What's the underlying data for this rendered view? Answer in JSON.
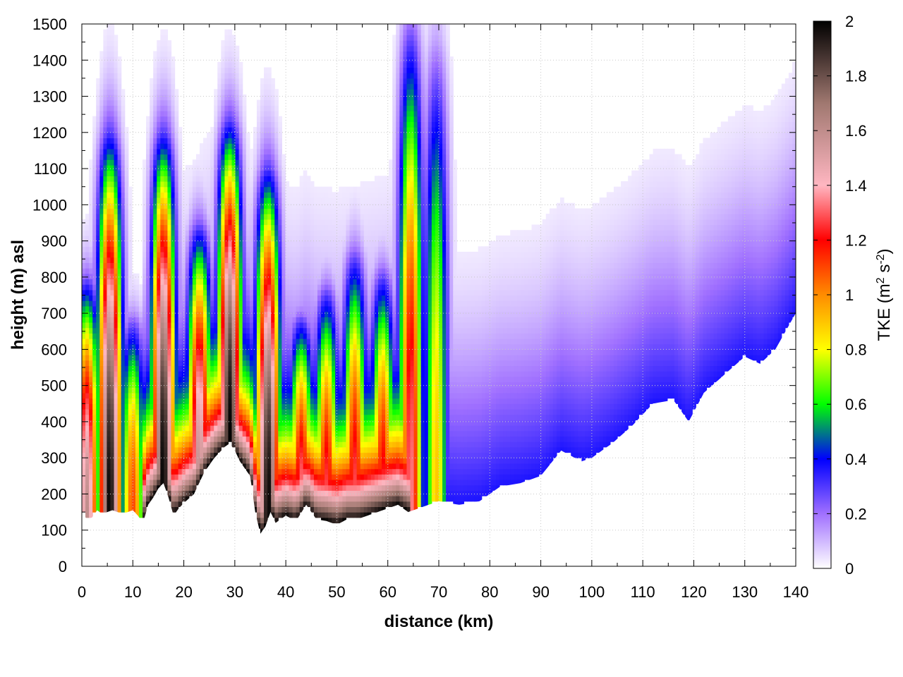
{
  "chart_data": {
    "type": "heatmap",
    "xlabel": "distance (km)",
    "ylabel": "height (m) asl",
    "xlim": [
      0,
      140
    ],
    "ylim": [
      0,
      1500
    ],
    "x_ticks": [
      0,
      10,
      20,
      30,
      40,
      50,
      60,
      70,
      80,
      90,
      100,
      110,
      120,
      130,
      140
    ],
    "y_ticks": [
      0,
      100,
      200,
      300,
      400,
      500,
      600,
      700,
      800,
      900,
      1000,
      1100,
      1200,
      1300,
      1400,
      1500
    ],
    "grid": true,
    "colorbar": {
      "label_prefix": "TKE (m",
      "label_exp1": "2",
      "label_mid": " s",
      "label_exp2": "-2",
      "label_suffix": ")",
      "range": [
        0,
        2
      ],
      "ticks": [
        "0",
        "0.2",
        "0.4",
        "0.6",
        "0.8",
        "1",
        "1.2",
        "1.4",
        "1.6",
        "1.8",
        "2"
      ],
      "colors": [
        "#ffffff",
        "#a070ff",
        "#0000ff",
        "#00ff00",
        "#ffff00",
        "#ff8c00",
        "#ff0000",
        "#ffb6c1",
        "#a07870",
        "#000000"
      ],
      "color_stops": [
        0,
        0.1,
        0.2,
        0.3,
        0.4,
        0.5,
        0.6,
        0.7,
        0.85,
        1.0
      ]
    },
    "terrain": {
      "x": [
        0,
        1,
        2,
        3,
        4,
        5,
        6,
        7,
        8,
        9,
        10,
        11,
        12,
        13,
        14,
        15,
        16,
        17,
        18,
        19,
        20,
        22,
        24,
        26,
        28,
        29,
        30,
        31,
        32,
        33,
        34,
        35,
        36,
        37,
        38,
        40,
        42,
        44,
        46,
        48,
        50,
        52,
        54,
        56,
        58,
        60,
        62,
        64,
        66,
        68,
        70,
        74,
        78,
        82,
        86,
        90,
        94,
        98,
        100,
        104,
        108,
        112,
        116,
        119,
        122,
        126,
        130,
        133,
        136,
        140
      ],
      "height": [
        150,
        130,
        135,
        155,
        145,
        150,
        155,
        150,
        145,
        150,
        155,
        140,
        120,
        170,
        190,
        215,
        230,
        190,
        140,
        160,
        175,
        200,
        260,
        300,
        330,
        340,
        320,
        290,
        270,
        250,
        150,
        90,
        110,
        150,
        120,
        140,
        125,
        170,
        130,
        125,
        115,
        130,
        130,
        140,
        150,
        160,
        170,
        150,
        160,
        170,
        180,
        170,
        180,
        220,
        230,
        250,
        320,
        290,
        300,
        340,
        390,
        450,
        460,
        400,
        480,
        530,
        580,
        560,
        600,
        700
      ]
    },
    "peaks": [
      {
        "x": 1,
        "h": 800,
        "i": 1.6
      },
      {
        "x": 5.5,
        "h": 1200,
        "i": 2.0
      },
      {
        "x": 10,
        "h": 700,
        "i": 1.1
      },
      {
        "x": 16,
        "h": 1200,
        "i": 2.0
      },
      {
        "x": 23,
        "h": 950,
        "i": 1.6
      },
      {
        "x": 29,
        "h": 1230,
        "i": 2.0
      },
      {
        "x": 36.5,
        "h": 1100,
        "i": 2.0
      },
      {
        "x": 43,
        "h": 700,
        "i": 1.35
      },
      {
        "x": 48,
        "h": 780,
        "i": 1.3
      },
      {
        "x": 53.5,
        "h": 880,
        "i": 1.3
      },
      {
        "x": 59,
        "h": 830,
        "i": 1.25
      },
      {
        "x": 64.5,
        "h": 1500,
        "i": 1.35
      },
      {
        "x": 69.5,
        "h": 1450,
        "i": 0.9
      }
    ]
  }
}
